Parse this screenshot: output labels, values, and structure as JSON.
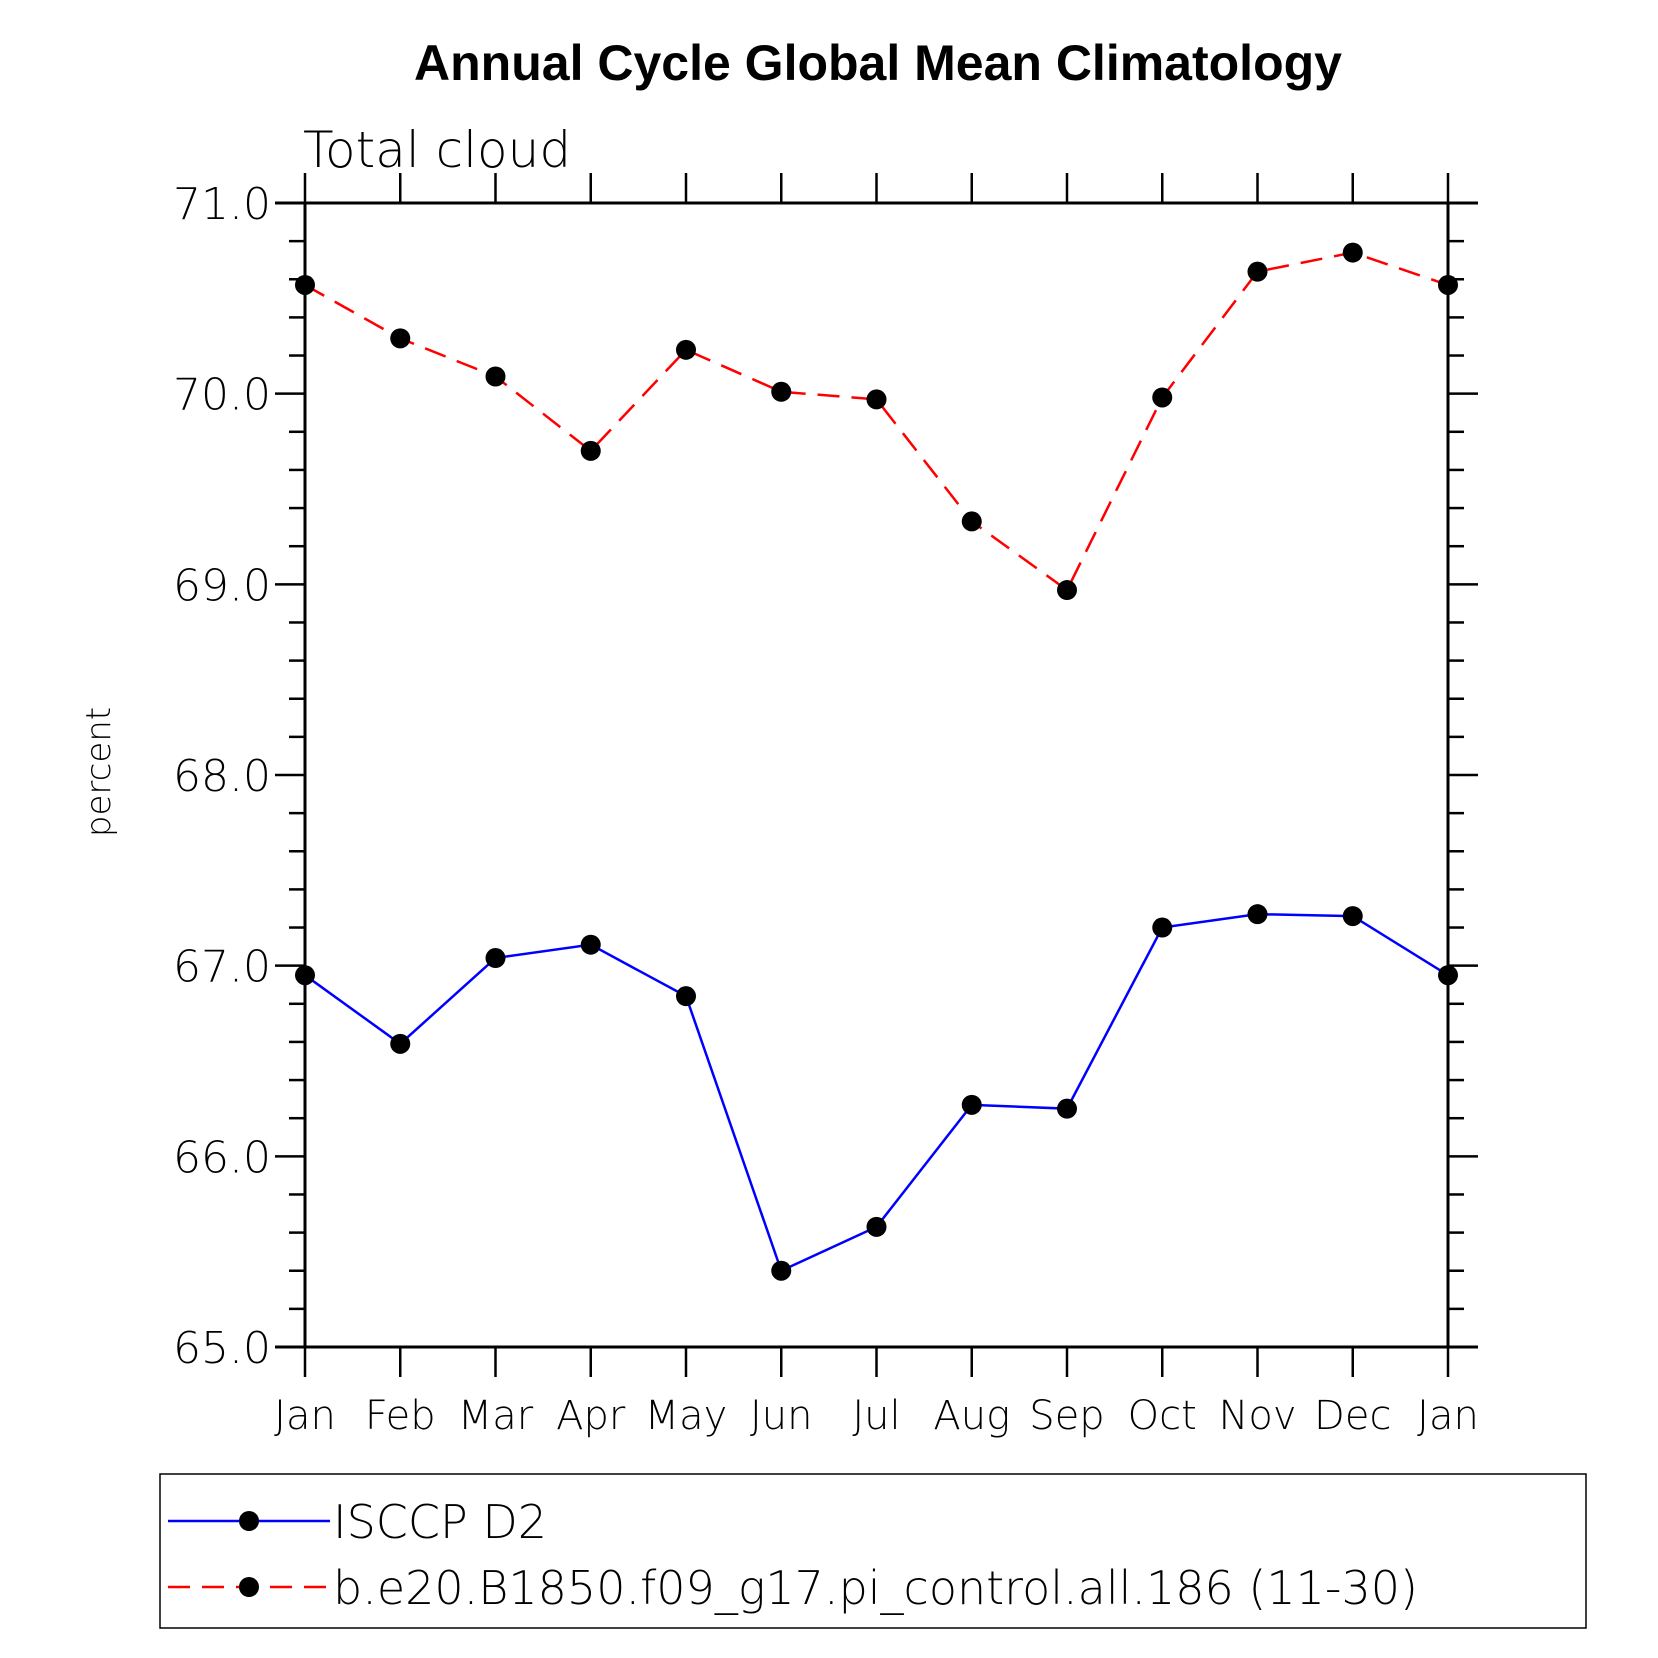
{
  "chart_data": {
    "type": "line",
    "title": "Annual Cycle Global Mean Climatology",
    "subtitle": "Total cloud",
    "ylabel": "percent",
    "xlabel": "",
    "categories": [
      "Jan",
      "Feb",
      "Mar",
      "Apr",
      "May",
      "Jun",
      "Jul",
      "Aug",
      "Sep",
      "Oct",
      "Nov",
      "Dec",
      "Jan"
    ],
    "ylim": [
      65.0,
      71.0
    ],
    "yticks": [
      "65.0",
      "66.0",
      "67.0",
      "68.0",
      "69.0",
      "70.0",
      "71.0"
    ],
    "legend_position": "bottom",
    "series": [
      {
        "name": "ISCCP D2",
        "color": "#0000ff",
        "dash": "solid",
        "marker": "filled-circle",
        "values": [
          66.95,
          66.59,
          67.04,
          67.11,
          66.84,
          65.4,
          65.63,
          66.27,
          66.25,
          67.2,
          67.27,
          67.26,
          66.95
        ]
      },
      {
        "name": "b.e20.B1850.f09_g17.pi_control.all.186 (11-30)",
        "color": "#ff0000",
        "dash": "dashed",
        "marker": "filled-circle",
        "values": [
          70.57,
          70.29,
          70.09,
          69.7,
          70.23,
          70.01,
          69.97,
          69.33,
          68.97,
          69.98,
          70.64,
          70.74,
          70.57
        ]
      }
    ]
  }
}
